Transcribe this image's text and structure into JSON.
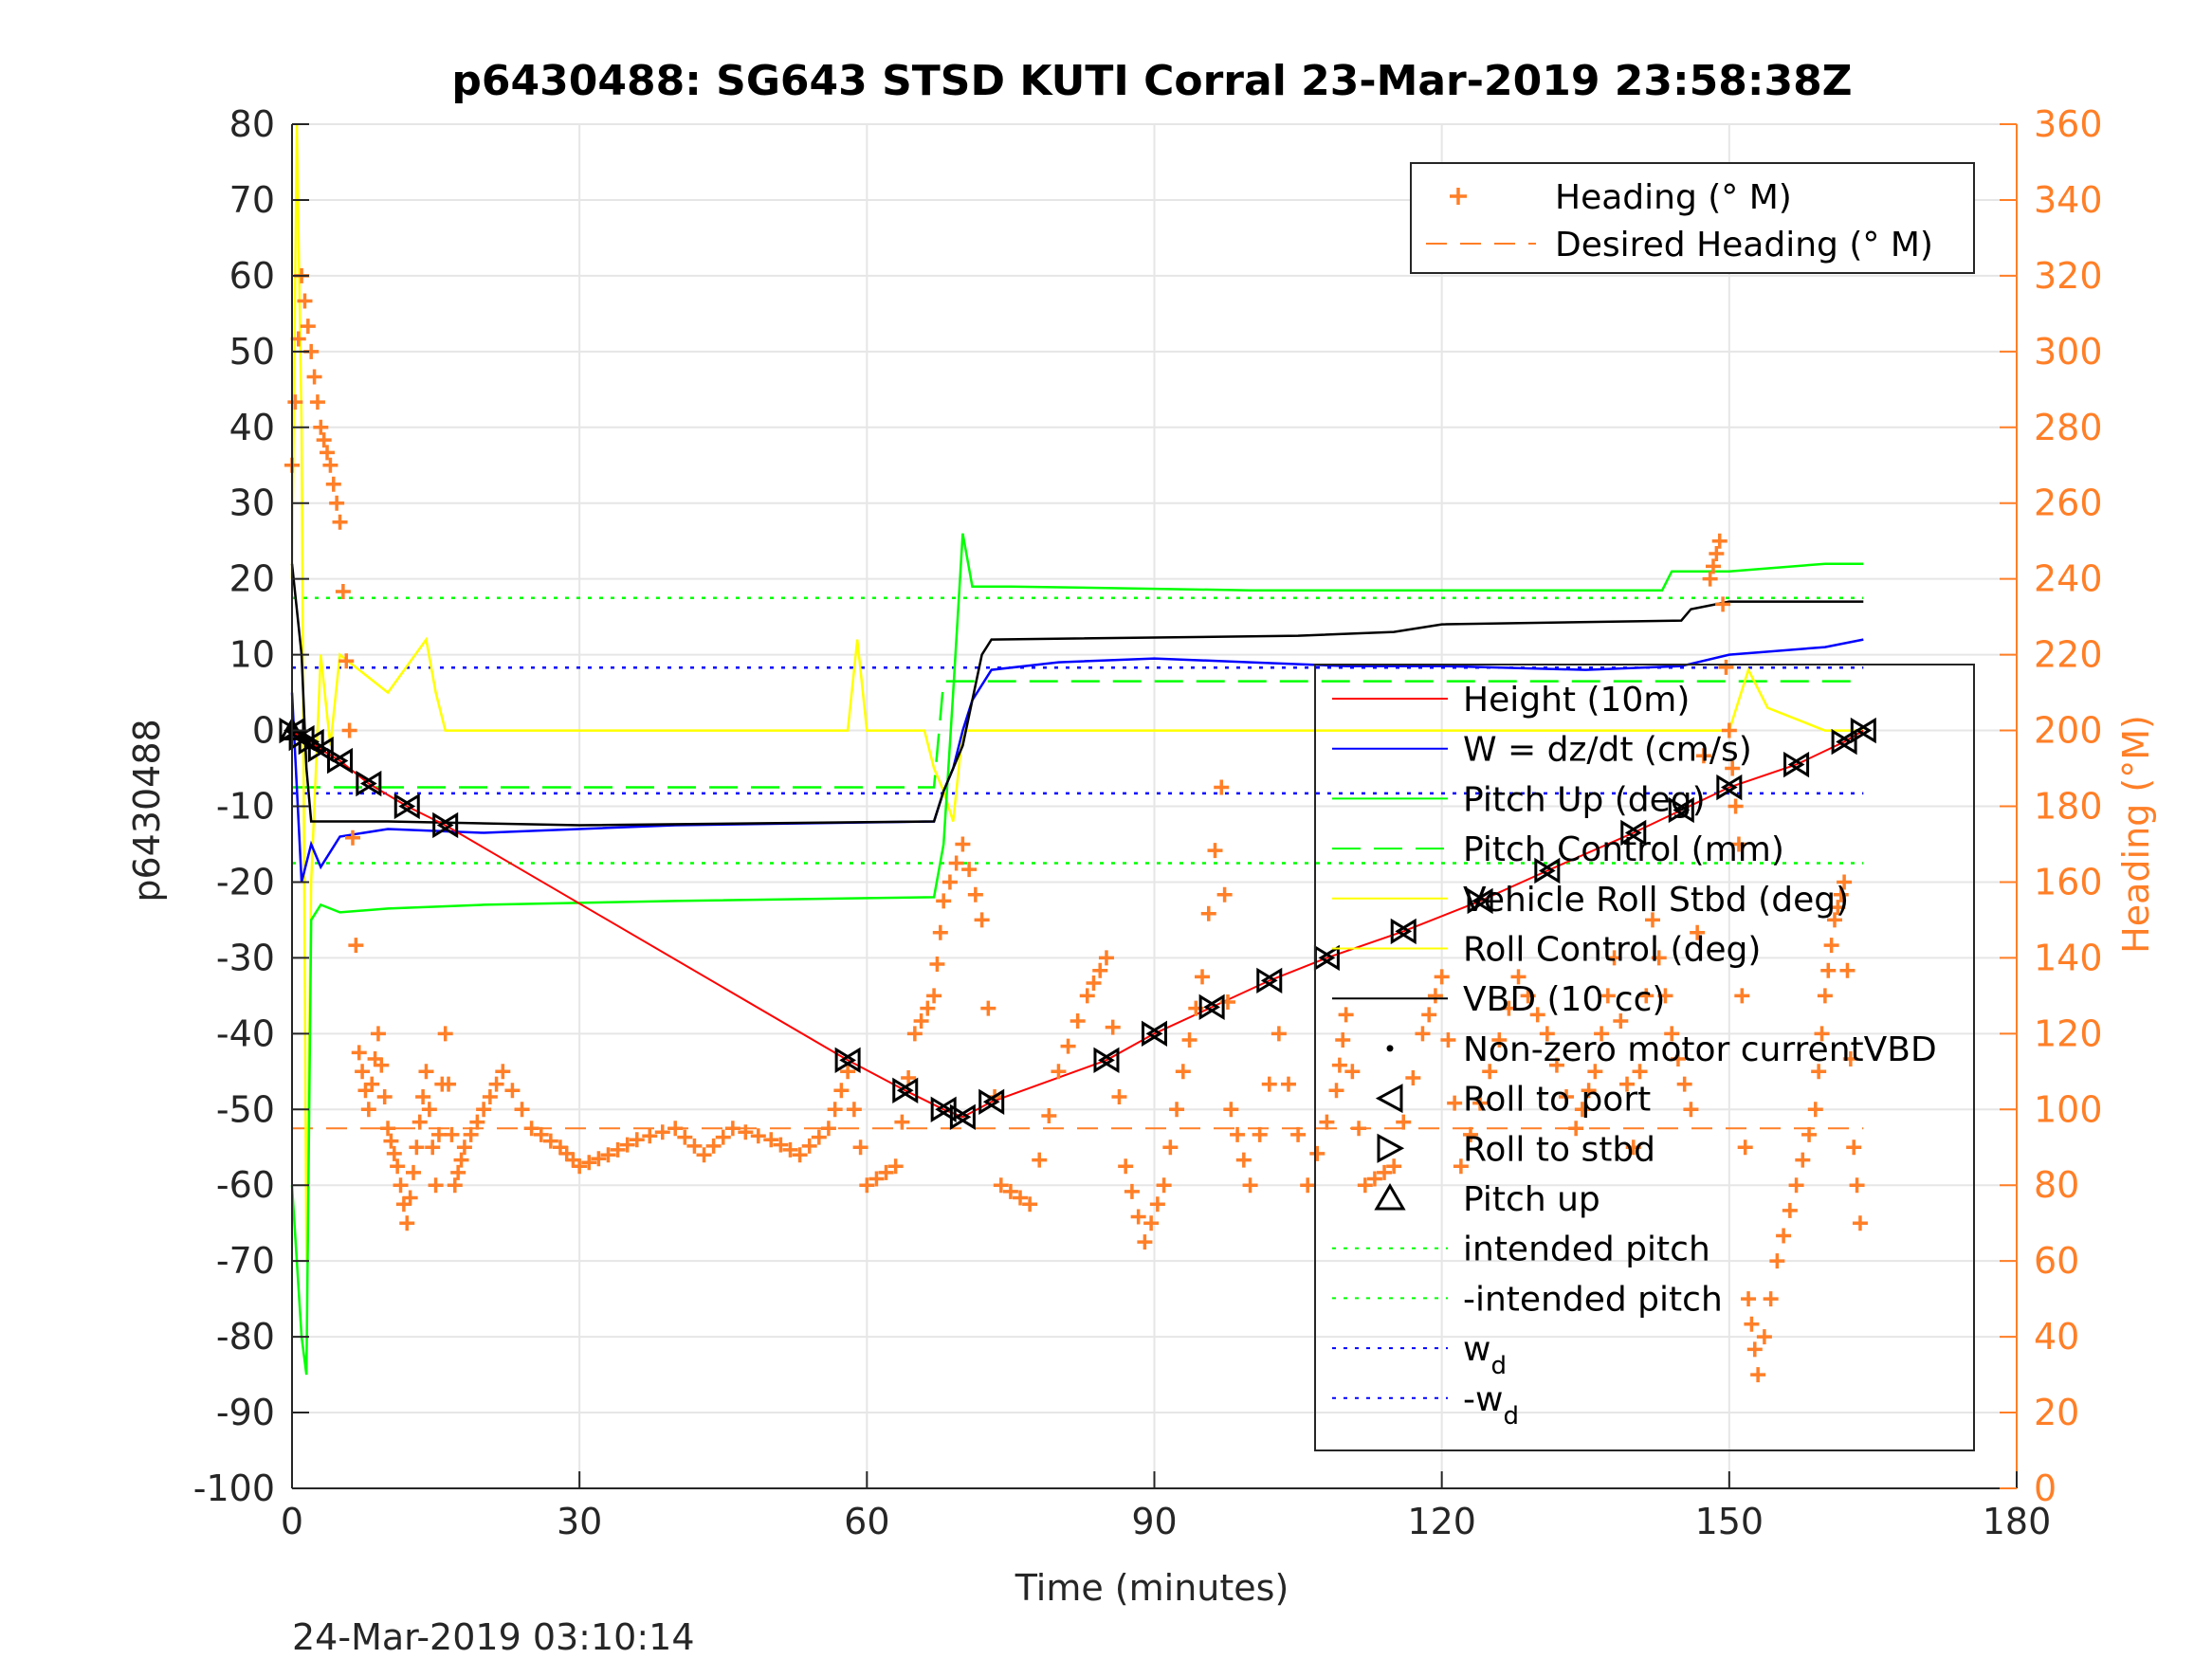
{
  "chart_data": {
    "type": "line",
    "title": "p6430488: SG643 STSD KUTI Corral 23-Mar-2019 23:58:38Z",
    "xlabel": "Time (minutes)",
    "ylabel": "p6430488",
    "y2label": "Heading (°M)",
    "footer": "24-Mar-2019 03:10:14",
    "xlim": [
      0,
      180
    ],
    "ylim": [
      -100,
      80
    ],
    "y2lim": [
      0,
      360
    ],
    "grid": true,
    "x_ticks": [
      "0",
      "30",
      "60",
      "90",
      "120",
      "150",
      "180"
    ],
    "y_ticks": [
      "80",
      "70",
      "60",
      "50",
      "40",
      "30",
      "20",
      "10",
      "0",
      "-10",
      "-20",
      "-30",
      "-40",
      "-50",
      "-60",
      "-70",
      "-80",
      "-90",
      "-100"
    ],
    "y2_ticks": [
      "360",
      "340",
      "320",
      "300",
      "280",
      "260",
      "240",
      "220",
      "200",
      "180",
      "160",
      "140",
      "120",
      "100",
      "80",
      "60",
      "40",
      "20",
      "0"
    ],
    "legend_top": {
      "placement": "top-right",
      "entries": [
        "Heading (° M)",
        "Desired Heading (° M)"
      ]
    },
    "legend_main": {
      "placement": "center-right",
      "entries": [
        "Height (10m)",
        "W = dz/dt (cm/s)",
        "Pitch Up (deg)",
        "Pitch Control (mm)",
        "Vehicle Roll Stbd (deg)",
        "Roll Control (deg)",
        "VBD (10 cc)",
        "Non-zero motor currentVBD",
        "Roll to port",
        "Roll to stbd",
        "Pitch up",
        "intended pitch",
        "-intended pitch",
        "w",
        "-w"
      ],
      "subscript": "d"
    },
    "colors": {
      "height": "#ff0000",
      "w": "#0000ff",
      "pitch": "#00ff00",
      "roll": "#ffff00",
      "vbd": "#000000",
      "heading": "#ff7f27",
      "grid": "#e6e6e6"
    },
    "series": [
      {
        "name": "Height (10m)",
        "x": [
          0,
          1,
          2,
          3,
          5,
          8,
          12,
          16,
          58,
          64,
          68,
          70,
          73,
          85,
          90,
          96,
          102,
          108,
          116,
          124,
          131,
          140,
          145,
          150,
          157,
          162,
          164
        ],
        "y": [
          0,
          -1,
          -1.5,
          -2.5,
          -4,
          -7,
          -10,
          -12.5,
          -43.5,
          -47.5,
          -50,
          -51,
          -49,
          -43.5,
          -40,
          -36.5,
          -33,
          -30,
          -26.5,
          -22.5,
          -18.5,
          -13.5,
          -10.5,
          -7.5,
          -4.5,
          -1.5,
          0
        ]
      },
      {
        "name": "VBD (10 cc)",
        "x": [
          0,
          1,
          1.5,
          2,
          10,
          30,
          67,
          68,
          70,
          72,
          73,
          105,
          115,
          120,
          145,
          146,
          150,
          164
        ],
        "y": [
          22,
          10,
          -5,
          -12,
          -12,
          -12.5,
          -12,
          -8,
          -2,
          10,
          12,
          12.5,
          13,
          14,
          14.5,
          16,
          17,
          17
        ]
      },
      {
        "name": "W = dz/dt (cm/s)",
        "x": [
          0,
          1,
          2,
          3,
          5,
          10,
          20,
          40,
          67,
          68,
          69,
          70,
          71,
          73,
          80,
          90,
          100,
          110,
          120,
          135,
          145,
          150,
          160,
          164
        ],
        "y": [
          5,
          -20,
          -15,
          -18,
          -14,
          -13,
          -13.5,
          -12.5,
          -12,
          -8,
          -5,
          0,
          4,
          8,
          9,
          9.5,
          9,
          8.5,
          8.5,
          8,
          8.5,
          10,
          11,
          12
        ]
      },
      {
        "name": "Pitch Up (deg)",
        "x": [
          0,
          1,
          1.5,
          2,
          3,
          5,
          10,
          20,
          40,
          67,
          68,
          69,
          70,
          71,
          75,
          100,
          120,
          143,
          144,
          150,
          160,
          164
        ],
        "y": [
          -60,
          -80,
          -85,
          -25,
          -23,
          -24,
          -23.5,
          -23,
          -22.5,
          -22,
          -15,
          5,
          26,
          19,
          19,
          18.5,
          18.5,
          18.5,
          21,
          21,
          22,
          22
        ]
      },
      {
        "name": "Vehicle Roll Stbd (deg)",
        "x": [
          0,
          0.5,
          1,
          1.5,
          2,
          3,
          4,
          5,
          10,
          14,
          15,
          16,
          17,
          30,
          58,
          59,
          60,
          66,
          67,
          68,
          69,
          70,
          75,
          85,
          100,
          120,
          150,
          152,
          154,
          160,
          164
        ],
        "y": [
          20,
          80,
          40,
          -70,
          -20,
          10,
          -2,
          10,
          5,
          12,
          5,
          0,
          0,
          0,
          0,
          12,
          0,
          0,
          -5,
          -8,
          -12,
          0,
          0,
          0,
          0,
          0,
          0,
          8,
          3,
          0,
          0
        ]
      },
      {
        "name": "Heading (° M)",
        "x": [
          0,
          1,
          2,
          3,
          4,
          5,
          6,
          7,
          8,
          9,
          10,
          11,
          12,
          13,
          14,
          15,
          16,
          17,
          18,
          20,
          22,
          25,
          28,
          30,
          33,
          36,
          40,
          43,
          46,
          50,
          53,
          56,
          58,
          60,
          63,
          65,
          67,
          68,
          70,
          72,
          74,
          77,
          80,
          83,
          85,
          87,
          89,
          91,
          93,
          95,
          97,
          98,
          100,
          103,
          106,
          109,
          110,
          112,
          115,
          118,
          120,
          122,
          125,
          128,
          131,
          134,
          136,
          138,
          140,
          142,
          144,
          146,
          148,
          149,
          150,
          151,
          152,
          153,
          155,
          157,
          159,
          160,
          161,
          162,
          163,
          164
        ],
        "y": [
          270,
          320,
          300,
          280,
          270,
          255,
          200,
          115,
          100,
          120,
          95,
          85,
          70,
          90,
          110,
          80,
          120,
          80,
          90,
          100,
          110,
          95,
          90,
          85,
          88,
          92,
          95,
          88,
          95,
          92,
          88,
          95,
          110,
          80,
          85,
          120,
          130,
          155,
          170,
          150,
          80,
          75,
          110,
          130,
          140,
          85,
          65,
          80,
          110,
          135,
          185,
          100,
          80,
          120,
          80,
          105,
          125,
          80,
          85,
          120,
          135,
          85,
          110,
          135,
          120,
          95,
          110,
          140,
          90,
          150,
          120,
          100,
          240,
          250,
          200,
          170,
          50,
          30,
          60,
          80,
          100,
          130,
          150,
          160,
          90,
          60
        ]
      },
      {
        "name": "Desired Heading (° M)",
        "x": [
          0,
          164
        ],
        "y": [
          95,
          95
        ]
      },
      {
        "name": "intended pitch",
        "x": [
          0,
          164
        ],
        "y": [
          17.5,
          17.5
        ]
      },
      {
        "name": "-intended pitch",
        "x": [
          0,
          164
        ],
        "y": [
          -17.5,
          -17.5
        ]
      },
      {
        "name": "Pitch Control (mm)",
        "x": [
          0,
          67,
          68,
          164
        ],
        "y": [
          -7.5,
          -7.5,
          6.5,
          6.5
        ]
      },
      {
        "name": "w",
        "x": [
          0,
          164
        ],
        "y": [
          8.3,
          8.3
        ]
      },
      {
        "name": "-w",
        "x": [
          0,
          164
        ],
        "y": [
          -8.3,
          -8.3
        ]
      }
    ]
  }
}
